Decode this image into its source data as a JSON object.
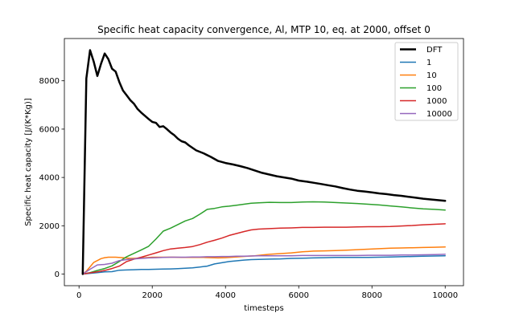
{
  "chart_data": {
    "type": "line",
    "title": "Specific heat capacity convergence, Al, MTP 10, eq. at 2000, offset 0",
    "xlabel": "timesteps",
    "ylabel": "Specific heat capacity [J/(K*Kg)]",
    "xlim": [
      -400,
      10500
    ],
    "ylim": [
      -480,
      9750
    ],
    "xticks": [
      0,
      2000,
      4000,
      6000,
      8000,
      10000
    ],
    "yticks": [
      0,
      2000,
      4000,
      6000,
      8000
    ],
    "grid": false,
    "legend_position": "top-right",
    "series": [
      {
        "name": "DFT",
        "color": "#000000",
        "linewidth": 2.5,
        "x": [
          100,
          200,
          300,
          400,
          500,
          600,
          700,
          800,
          900,
          1000,
          1100,
          1200,
          1300,
          1400,
          1500,
          1600,
          1700,
          1800,
          1900,
          2000,
          2100,
          2200,
          2300,
          2400,
          2500,
          2600,
          2700,
          2800,
          2900,
          3000,
          3200,
          3400,
          3600,
          3800,
          4000,
          4200,
          4400,
          4600,
          4800,
          5000,
          5200,
          5400,
          5600,
          5800,
          6000,
          6200,
          6400,
          6600,
          6800,
          7000,
          7200,
          7400,
          7600,
          7800,
          8000,
          8200,
          8400,
          8600,
          8800,
          9000,
          9200,
          9400,
          9600,
          9800,
          10000
        ],
        "y": [
          0,
          8100,
          9270,
          8800,
          8200,
          8700,
          9130,
          8900,
          8500,
          8380,
          7950,
          7600,
          7400,
          7200,
          7050,
          6830,
          6680,
          6550,
          6420,
          6300,
          6260,
          6090,
          6120,
          6000,
          5860,
          5750,
          5600,
          5500,
          5450,
          5330,
          5120,
          5000,
          4850,
          4680,
          4600,
          4540,
          4470,
          4390,
          4290,
          4190,
          4120,
          4050,
          4000,
          3950,
          3870,
          3830,
          3780,
          3730,
          3680,
          3630,
          3560,
          3500,
          3450,
          3420,
          3380,
          3340,
          3310,
          3270,
          3240,
          3200,
          3160,
          3120,
          3090,
          3060,
          3030
        ]
      },
      {
        "name": "1",
        "color": "#1f77b4",
        "linewidth": 1.5,
        "x": [
          100,
          300,
          500,
          700,
          900,
          1100,
          1300,
          1500,
          1700,
          1900,
          2100,
          2300,
          2500,
          2700,
          2900,
          3100,
          3300,
          3500,
          3700,
          3900,
          4100,
          4300,
          4500,
          4700,
          4900,
          5200,
          5500,
          5800,
          6100,
          6400,
          6700,
          7000,
          7300,
          7600,
          7900,
          8200,
          8500,
          8800,
          9100,
          9400,
          9700,
          10000
        ],
        "y": [
          0,
          30,
          60,
          90,
          100,
          160,
          170,
          180,
          190,
          195,
          200,
          210,
          215,
          225,
          240,
          260,
          290,
          330,
          420,
          470,
          520,
          550,
          580,
          600,
          610,
          620,
          630,
          650,
          660,
          670,
          680,
          690,
          690,
          690,
          690,
          700,
          710,
          720,
          730,
          740,
          750,
          760
        ]
      },
      {
        "name": "10",
        "color": "#ff7f0e",
        "linewidth": 1.5,
        "x": [
          100,
          200,
          300,
          400,
          500,
          600,
          700,
          800,
          1000,
          1200,
          1400,
          1600,
          1800,
          2000,
          2200,
          2400,
          2600,
          2800,
          3000,
          3200,
          3400,
          3600,
          3800,
          4000,
          4200,
          4400,
          4600,
          4800,
          5000,
          5200,
          5500,
          5800,
          6100,
          6400,
          6700,
          7000,
          7300,
          7600,
          7900,
          8200,
          8500,
          8800,
          9100,
          9400,
          9700,
          10000
        ],
        "y": [
          0,
          120,
          300,
          480,
          560,
          640,
          680,
          700,
          700,
          680,
          650,
          660,
          680,
          700,
          700,
          700,
          700,
          690,
          690,
          690,
          690,
          680,
          670,
          680,
          700,
          720,
          740,
          760,
          790,
          820,
          850,
          880,
          920,
          950,
          960,
          970,
          990,
          1010,
          1030,
          1050,
          1070,
          1080,
          1090,
          1100,
          1110,
          1120
        ]
      },
      {
        "name": "100",
        "color": "#2ca02c",
        "linewidth": 1.5,
        "x": [
          100,
          300,
          500,
          700,
          900,
          1100,
          1300,
          1500,
          1700,
          1900,
          2100,
          2300,
          2500,
          2700,
          2900,
          3100,
          3300,
          3500,
          3700,
          3900,
          4100,
          4300,
          4500,
          4700,
          4900,
          5200,
          5500,
          5800,
          6100,
          6400,
          6700,
          7000,
          7300,
          7600,
          7900,
          8200,
          8500,
          8800,
          9100,
          9400,
          9700,
          10000
        ],
        "y": [
          0,
          60,
          150,
          230,
          340,
          520,
          720,
          860,
          1000,
          1150,
          1450,
          1780,
          1900,
          2050,
          2200,
          2300,
          2480,
          2680,
          2720,
          2780,
          2810,
          2850,
          2890,
          2930,
          2950,
          2970,
          2960,
          2960,
          2980,
          2990,
          2980,
          2960,
          2940,
          2920,
          2890,
          2860,
          2820,
          2780,
          2740,
          2700,
          2680,
          2650
        ]
      },
      {
        "name": "1000",
        "color": "#d62728",
        "linewidth": 1.5,
        "x": [
          100,
          300,
          500,
          700,
          900,
          1100,
          1300,
          1500,
          1700,
          1900,
          2100,
          2300,
          2500,
          2700,
          2900,
          3100,
          3300,
          3500,
          3700,
          3900,
          4100,
          4300,
          4500,
          4700,
          4900,
          5200,
          5500,
          5800,
          6100,
          6400,
          6700,
          7000,
          7300,
          7600,
          7900,
          8200,
          8500,
          8800,
          9100,
          9400,
          9700,
          10000
        ],
        "y": [
          0,
          50,
          90,
          150,
          230,
          330,
          520,
          620,
          700,
          790,
          880,
          970,
          1040,
          1070,
          1100,
          1140,
          1220,
          1320,
          1400,
          1490,
          1600,
          1680,
          1760,
          1830,
          1860,
          1880,
          1900,
          1910,
          1930,
          1930,
          1940,
          1940,
          1940,
          1950,
          1960,
          1960,
          1970,
          1990,
          2010,
          2040,
          2060,
          2080
        ]
      },
      {
        "name": "10000",
        "color": "#9467bd",
        "linewidth": 1.5,
        "x": [
          100,
          300,
          500,
          700,
          900,
          1100,
          1300,
          1500,
          1700,
          1900,
          2100,
          2300,
          2500,
          2700,
          2900,
          3100,
          3300,
          3500,
          3700,
          3900,
          4100,
          4300,
          4500,
          4700,
          4900,
          5200,
          5500,
          5800,
          6100,
          6400,
          6700,
          7000,
          7300,
          7600,
          7900,
          8200,
          8500,
          8800,
          9100,
          9400,
          9700,
          10000
        ],
        "y": [
          0,
          200,
          380,
          400,
          450,
          560,
          600,
          630,
          650,
          670,
          680,
          690,
          700,
          700,
          700,
          710,
          710,
          720,
          720,
          730,
          730,
          740,
          740,
          750,
          760,
          760,
          760,
          760,
          770,
          770,
          770,
          770,
          770,
          770,
          780,
          780,
          780,
          790,
          790,
          800,
          810,
          820
        ]
      }
    ]
  }
}
